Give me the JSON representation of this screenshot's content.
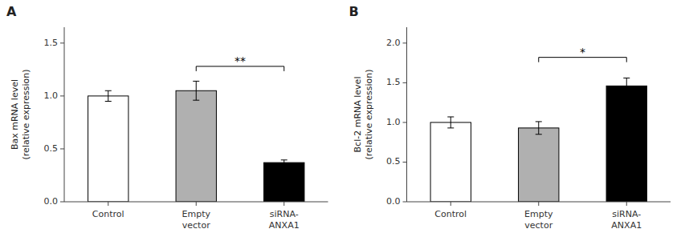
{
  "chart_data": [
    {
      "type": "bar",
      "title": "A",
      "y_label": "Bax mRNA level\n(relative expression)",
      "categories": [
        "Control",
        "Empty\nvector",
        "siRNA-\nANXA1"
      ],
      "values": [
        1.0,
        1.05,
        0.37
      ],
      "errors": [
        0.05,
        0.09,
        0.025
      ],
      "colors": [
        "#ffffff",
        "#b0b0b0",
        "#000000"
      ],
      "ylim": [
        0,
        1.65
      ],
      "yticks": [
        {
          "value": 0.0,
          "label": "0.0"
        },
        0.5,
        {
          "value": 1.0,
          "label": "1.0"
        },
        1.5
      ],
      "grid": false,
      "annotations": [
        {
          "text": "**",
          "from": "Empty\nvector",
          "to": "siRNA-\nANXA1",
          "y": 1.28
        }
      ]
    },
    {
      "type": "bar",
      "title": "B",
      "y_label": "Bcl-2 mRNA level\n(relative expression)",
      "categories": [
        "Control",
        "Empty\nvector",
        "siRNA-\nANXA1"
      ],
      "values": [
        1.0,
        0.93,
        1.46
      ],
      "errors": [
        0.07,
        0.08,
        0.1
      ],
      "colors": [
        "#ffffff",
        "#b0b0b0",
        "#000000"
      ],
      "ylim": [
        0,
        2.2
      ],
      "yticks": [
        {
          "value": 0.0,
          "label": "0.0"
        },
        0.5,
        {
          "value": 1.0,
          "label": "1.0"
        },
        1.5,
        {
          "value": 2.0,
          "label": "2.0"
        }
      ],
      "grid": false,
      "annotations": [
        {
          "text": "*",
          "from": "Empty\nvector",
          "to": "siRNA-\nANXA1",
          "y": 1.82
        }
      ]
    }
  ]
}
